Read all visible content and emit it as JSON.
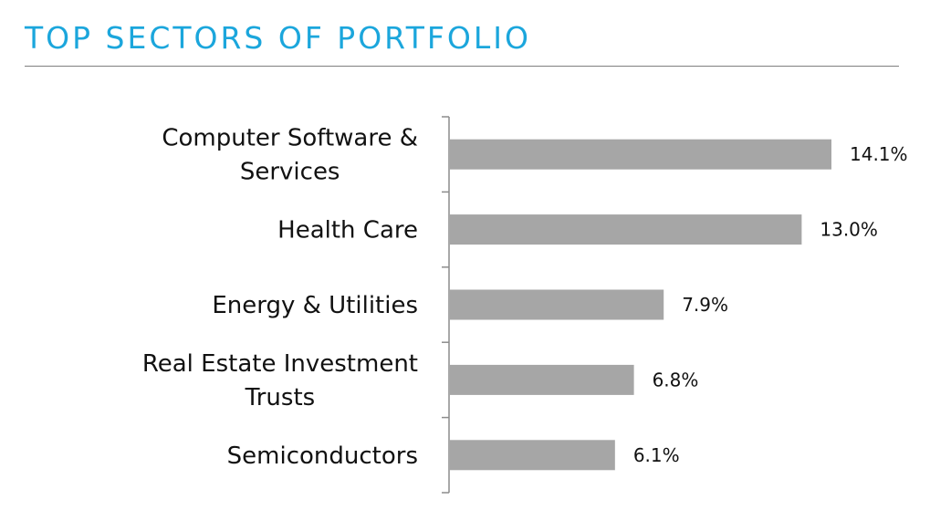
{
  "header": {
    "title": "TOP SECTORS OF PORTFOLIO"
  },
  "colors": {
    "title": "#1ba6dc",
    "bar": "#a6a6a6",
    "axis": "#8c8c8c",
    "rule": "#7f7f7f"
  },
  "chart_data": {
    "type": "bar",
    "orientation": "horizontal",
    "title": "",
    "xlabel": "",
    "ylabel": "",
    "grid": false,
    "legend": "none",
    "categories": [
      [
        "Computer Software &",
        "Services"
      ],
      [
        "Health Care"
      ],
      [
        "Energy & Utilities"
      ],
      [
        "Real Estate Investment",
        "Trusts"
      ],
      [
        "Semiconductors"
      ]
    ],
    "values": [
      14.1,
      13.0,
      7.9,
      6.8,
      6.1
    ],
    "value_labels": [
      "14.1%",
      "13.0%",
      "7.9%",
      "6.8%",
      "6.1%"
    ],
    "xlim": [
      0,
      15
    ]
  }
}
